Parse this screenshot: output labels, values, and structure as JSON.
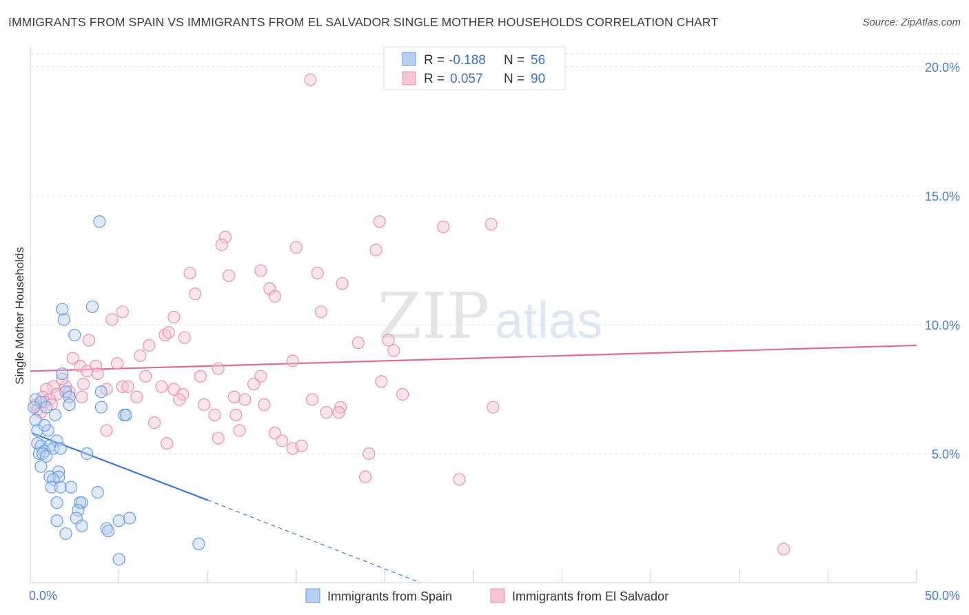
{
  "title": "IMMIGRANTS FROM SPAIN VS IMMIGRANTS FROM EL SALVADOR SINGLE MOTHER HOUSEHOLDS CORRELATION CHART",
  "source": "Source: ZipAtlas.com",
  "watermark": {
    "zip": "ZIP",
    "atlas": "atlas"
  },
  "chart_data": {
    "type": "scatter",
    "title": "IMMIGRANTS FROM SPAIN VS IMMIGRANTS FROM EL SALVADOR SINGLE MOTHER HOUSEHOLDS CORRELATION CHART",
    "xlabel": "",
    "ylabel": "Single Mother Households",
    "xlim": [
      0,
      50
    ],
    "ylim": [
      0,
      20
    ],
    "x_tick_labels": [
      "0.0%",
      "50.0%"
    ],
    "y_ticks": [
      5,
      10,
      15,
      20
    ],
    "y_tick_labels": [
      "5.0%",
      "10.0%",
      "15.0%",
      "20.0%"
    ],
    "legend": [
      {
        "r_label": "R =",
        "r_value": "-0.188",
        "n_label": "N =",
        "n_value": "56"
      },
      {
        "r_label": "R =",
        "r_value": "0.057",
        "n_label": "N =",
        "n_value": "90"
      }
    ],
    "series": [
      {
        "name": "Immigrants from Spain",
        "color": "#6a9de0",
        "fill": "#b7cff0",
        "trend": {
          "x0": 0.1,
          "y0": 5.8,
          "x1": 10.0,
          "y1": 3.2,
          "dash_to_x": 22.0,
          "dash_to_y": 0.0
        },
        "points": [
          [
            3.9,
            14.0
          ],
          [
            1.8,
            10.6
          ],
          [
            1.9,
            10.2
          ],
          [
            3.5,
            10.7
          ],
          [
            2.5,
            9.6
          ],
          [
            1.8,
            8.1
          ],
          [
            2.0,
            7.4
          ],
          [
            2.2,
            7.2
          ],
          [
            4.0,
            7.4
          ],
          [
            0.3,
            7.1
          ],
          [
            0.6,
            7.0
          ],
          [
            0.2,
            6.8
          ],
          [
            0.9,
            6.8
          ],
          [
            2.2,
            6.9
          ],
          [
            4.0,
            6.8
          ],
          [
            5.3,
            6.5
          ],
          [
            5.4,
            6.5
          ],
          [
            0.3,
            6.3
          ],
          [
            0.4,
            5.9
          ],
          [
            1.0,
            5.9
          ],
          [
            0.4,
            5.4
          ],
          [
            0.6,
            5.3
          ],
          [
            1.1,
            5.3
          ],
          [
            1.5,
            5.5
          ],
          [
            0.8,
            5.1
          ],
          [
            1.3,
            5.2
          ],
          [
            1.7,
            5.2
          ],
          [
            0.5,
            5.0
          ],
          [
            0.7,
            5.0
          ],
          [
            0.9,
            4.9
          ],
          [
            0.6,
            4.5
          ],
          [
            1.6,
            4.3
          ],
          [
            1.1,
            4.1
          ],
          [
            1.6,
            4.1
          ],
          [
            1.3,
            4.0
          ],
          [
            1.2,
            3.7
          ],
          [
            1.7,
            3.7
          ],
          [
            2.3,
            3.7
          ],
          [
            3.8,
            3.5
          ],
          [
            1.5,
            3.1
          ],
          [
            2.8,
            3.1
          ],
          [
            2.9,
            3.1
          ],
          [
            2.7,
            2.8
          ],
          [
            1.5,
            2.4
          ],
          [
            2.6,
            2.5
          ],
          [
            5.0,
            2.4
          ],
          [
            5.6,
            2.5
          ],
          [
            2.9,
            2.2
          ],
          [
            4.3,
            2.1
          ],
          [
            4.4,
            2.0
          ],
          [
            2.0,
            1.9
          ],
          [
            9.5,
            1.5
          ],
          [
            5.0,
            0.9
          ],
          [
            1.4,
            6.5
          ],
          [
            3.2,
            5.0
          ],
          [
            0.8,
            6.1
          ]
        ]
      },
      {
        "name": "Immigrants from El Salvador",
        "color": "#e891ad",
        "fill": "#f6c4d4",
        "trend": {
          "x0": 0.0,
          "y0": 8.2,
          "x1": 50.0,
          "y1": 9.2
        },
        "points": [
          [
            15.8,
            19.5
          ],
          [
            19.7,
            14.0
          ],
          [
            23.3,
            13.8
          ],
          [
            26.0,
            13.9
          ],
          [
            11.0,
            13.4
          ],
          [
            10.8,
            13.1
          ],
          [
            15.0,
            13.0
          ],
          [
            19.5,
            12.9
          ],
          [
            13.0,
            12.1
          ],
          [
            16.2,
            12.0
          ],
          [
            9.0,
            12.0
          ],
          [
            11.2,
            11.9
          ],
          [
            17.6,
            11.6
          ],
          [
            13.5,
            11.4
          ],
          [
            9.3,
            11.2
          ],
          [
            13.8,
            11.1
          ],
          [
            5.2,
            10.5
          ],
          [
            16.4,
            10.5
          ],
          [
            4.6,
            10.2
          ],
          [
            8.1,
            10.3
          ],
          [
            7.6,
            9.6
          ],
          [
            7.8,
            9.7
          ],
          [
            8.7,
            9.5
          ],
          [
            3.3,
            9.4
          ],
          [
            18.5,
            9.3
          ],
          [
            20.2,
            9.4
          ],
          [
            6.7,
            9.2
          ],
          [
            20.5,
            9.0
          ],
          [
            14.8,
            8.6
          ],
          [
            6.2,
            8.8
          ],
          [
            2.8,
            8.4
          ],
          [
            3.7,
            8.4
          ],
          [
            4.9,
            8.5
          ],
          [
            10.6,
            8.3
          ],
          [
            3.2,
            8.2
          ],
          [
            3.8,
            8.1
          ],
          [
            6.5,
            8.0
          ],
          [
            9.6,
            8.0
          ],
          [
            13.0,
            8.0
          ],
          [
            12.6,
            7.7
          ],
          [
            1.3,
            7.6
          ],
          [
            2.0,
            7.6
          ],
          [
            5.2,
            7.6
          ],
          [
            5.5,
            7.6
          ],
          [
            7.4,
            7.6
          ],
          [
            8.1,
            7.5
          ],
          [
            4.3,
            7.5
          ],
          [
            0.9,
            7.5
          ],
          [
            2.2,
            7.4
          ],
          [
            8.6,
            7.3
          ],
          [
            0.7,
            7.2
          ],
          [
            1.5,
            7.3
          ],
          [
            2.9,
            7.2
          ],
          [
            6.0,
            7.2
          ],
          [
            11.5,
            7.2
          ],
          [
            1.1,
            7.1
          ],
          [
            0.8,
            7.0
          ],
          [
            8.4,
            7.1
          ],
          [
            12.1,
            7.1
          ],
          [
            15.9,
            7.1
          ],
          [
            21.0,
            7.3
          ],
          [
            0.3,
            6.9
          ],
          [
            1.2,
            6.9
          ],
          [
            9.8,
            6.9
          ],
          [
            13.2,
            6.9
          ],
          [
            17.5,
            6.8
          ],
          [
            26.1,
            6.8
          ],
          [
            0.4,
            6.7
          ],
          [
            0.6,
            6.6
          ],
          [
            10.4,
            6.5
          ],
          [
            11.6,
            6.5
          ],
          [
            16.7,
            6.6
          ],
          [
            17.4,
            6.6
          ],
          [
            7.0,
            6.2
          ],
          [
            4.3,
            5.9
          ],
          [
            11.8,
            5.9
          ],
          [
            13.8,
            5.8
          ],
          [
            10.6,
            5.6
          ],
          [
            14.2,
            5.5
          ],
          [
            7.7,
            5.4
          ],
          [
            14.8,
            5.2
          ],
          [
            15.3,
            5.3
          ],
          [
            19.1,
            5.0
          ],
          [
            18.9,
            4.1
          ],
          [
            24.2,
            4.0
          ],
          [
            42.5,
            1.3
          ],
          [
            3.0,
            7.7
          ],
          [
            2.4,
            8.7
          ],
          [
            1.8,
            7.9
          ],
          [
            19.8,
            7.8
          ]
        ]
      }
    ]
  }
}
